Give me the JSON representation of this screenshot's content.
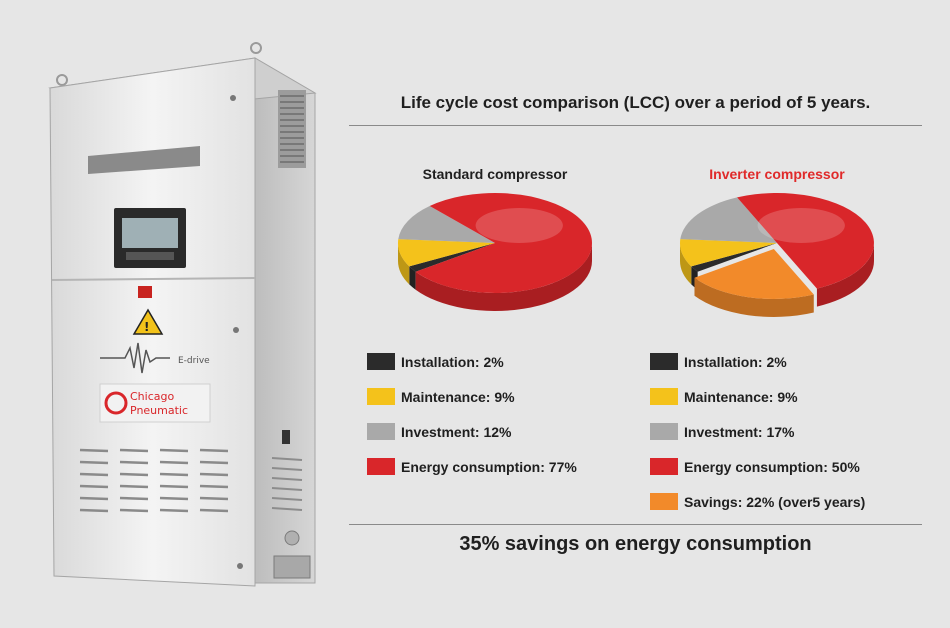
{
  "header": {
    "title": "Life cycle cost comparison (LCC) over a period of 5 years."
  },
  "footer": {
    "text": "35% savings on energy consumption"
  },
  "product": {
    "brand_line1": "Chicago",
    "brand_line2": "Pneumatic",
    "drive_label": "E-drive"
  },
  "colors": {
    "installation": "#2b2b2b",
    "maintenance": "#f4c21b",
    "investment": "#a9a9a9",
    "energy": "#d9262a",
    "savings": "#f28a2a",
    "accent_red": "#e02a2a"
  },
  "chart_data": [
    {
      "type": "pie",
      "title": "Standard compressor",
      "categories": [
        "Installation",
        "Maintenance",
        "Investment",
        "Energy consumption"
      ],
      "labels": [
        "Installation: 2%",
        "Maintenance: 9%",
        "Investment: 12%",
        "Energy consumption: 77%"
      ],
      "values": [
        2,
        9,
        12,
        77
      ],
      "colors": [
        "#2b2b2b",
        "#f4c21b",
        "#a9a9a9",
        "#d9262a"
      ]
    },
    {
      "type": "pie",
      "title": "Inverter compressor",
      "categories": [
        "Installation",
        "Maintenance",
        "Investment",
        "Energy consumption",
        "Savings"
      ],
      "labels": [
        "Installation: 2%",
        "Maintenance: 9%",
        "Investment: 17%",
        "Energy consumption: 50%",
        "Savings: 22% (over5 years)"
      ],
      "values": [
        2,
        9,
        17,
        50,
        22
      ],
      "colors": [
        "#2b2b2b",
        "#f4c21b",
        "#a9a9a9",
        "#d9262a",
        "#f28a2a"
      ],
      "exploded": [
        "Savings"
      ]
    }
  ]
}
